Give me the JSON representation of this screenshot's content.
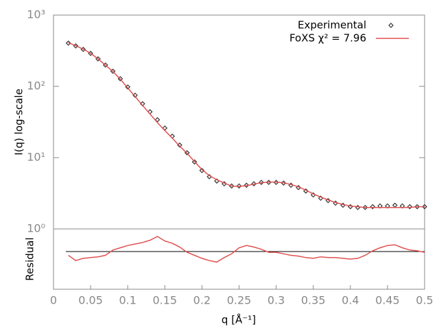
{
  "chart_data": [
    {
      "type": "line",
      "ylabel": "I(q) log-scale",
      "log_y": true,
      "x": [
        0.02,
        0.03,
        0.04,
        0.05,
        0.06,
        0.07,
        0.08,
        0.09,
        0.1,
        0.11,
        0.12,
        0.13,
        0.14,
        0.15,
        0.16,
        0.17,
        0.18,
        0.19,
        0.2,
        0.21,
        0.22,
        0.23,
        0.24,
        0.25,
        0.26,
        0.27,
        0.28,
        0.29,
        0.3,
        0.31,
        0.32,
        0.33,
        0.34,
        0.35,
        0.36,
        0.37,
        0.38,
        0.39,
        0.4,
        0.41,
        0.42,
        0.43,
        0.44,
        0.45,
        0.46,
        0.47,
        0.48,
        0.49,
        0.5
      ],
      "xlim": [
        0,
        0.5
      ],
      "ylim": [
        1,
        1000
      ],
      "yticks": [
        {
          "value": 1,
          "label": "10⁰"
        },
        {
          "value": 10,
          "label": "10¹"
        },
        {
          "value": 100,
          "label": "10²"
        },
        {
          "value": 1000,
          "label": "10³"
        }
      ],
      "series": [
        {
          "name": "Experimental",
          "color": "#333333",
          "mode": "points",
          "values": [
            404,
            369,
            330,
            290,
            243,
            199,
            163,
            128,
            98,
            75,
            57,
            44,
            34,
            26,
            20,
            15,
            11.7,
            8.7,
            6.6,
            5.4,
            4.7,
            4.3,
            4.0,
            4.0,
            4.1,
            4.3,
            4.5,
            4.5,
            4.5,
            4.4,
            4.1,
            3.8,
            3.4,
            3.0,
            2.7,
            2.5,
            2.3,
            2.15,
            2.05,
            2.0,
            2.0,
            2.05,
            2.1,
            2.1,
            2.15,
            2.1,
            2.05,
            2.05,
            2.05
          ]
        },
        {
          "name": "FoXS χ² = 7.96",
          "color": "#e05050",
          "mode": "line",
          "values": [
            410,
            372,
            333,
            291,
            243,
            198,
            162,
            126,
            95,
            72,
            54,
            41,
            31,
            24,
            18.8,
            14.5,
            11.5,
            8.8,
            6.8,
            5.6,
            4.9,
            4.4,
            4.0,
            3.95,
            4.05,
            4.25,
            4.45,
            4.55,
            4.55,
            4.45,
            4.2,
            3.9,
            3.5,
            3.1,
            2.8,
            2.55,
            2.35,
            2.2,
            2.1,
            2.05,
            2.0,
            2.0,
            2.0,
            2.0,
            2.0,
            2.0,
            2.0,
            2.05,
            2.05
          ]
        }
      ]
    },
    {
      "type": "line",
      "ylabel": "Residual",
      "xlabel": "q [Å⁻¹]",
      "x": [
        0.02,
        0.03,
        0.04,
        0.05,
        0.06,
        0.07,
        0.08,
        0.09,
        0.1,
        0.11,
        0.12,
        0.13,
        0.14,
        0.15,
        0.16,
        0.17,
        0.18,
        0.19,
        0.2,
        0.21,
        0.22,
        0.23,
        0.24,
        0.25,
        0.26,
        0.27,
        0.28,
        0.29,
        0.3,
        0.31,
        0.32,
        0.33,
        0.34,
        0.35,
        0.36,
        0.37,
        0.38,
        0.39,
        0.4,
        0.41,
        0.42,
        0.43,
        0.44,
        0.45,
        0.46,
        0.47,
        0.48,
        0.49,
        0.5
      ],
      "xlim": [
        0,
        0.5
      ],
      "ylim": [
        -5,
        3
      ],
      "xticks": [
        0,
        0.05,
        0.1,
        0.15,
        0.2,
        0.25,
        0.3,
        0.35,
        0.4,
        0.45,
        0.5
      ],
      "series": [
        {
          "color": "#e05050",
          "mode": "line",
          "values": [
            -0.5,
            -1.2,
            -0.9,
            -0.8,
            -0.7,
            -0.5,
            0.2,
            0.5,
            0.8,
            1.0,
            1.2,
            1.5,
            2.0,
            1.4,
            1.1,
            0.6,
            -0.1,
            -0.5,
            -0.9,
            -1.2,
            -1.4,
            -0.8,
            -0.3,
            0.5,
            0.8,
            0.6,
            0.3,
            -0.1,
            -0.1,
            -0.3,
            -0.5,
            -0.6,
            -0.8,
            -0.9,
            -0.7,
            -0.8,
            -0.8,
            -0.9,
            -1.0,
            -0.9,
            -0.5,
            0.1,
            0.5,
            0.8,
            0.9,
            0.5,
            0.2,
            0.1,
            -0.1
          ]
        }
      ]
    }
  ]
}
